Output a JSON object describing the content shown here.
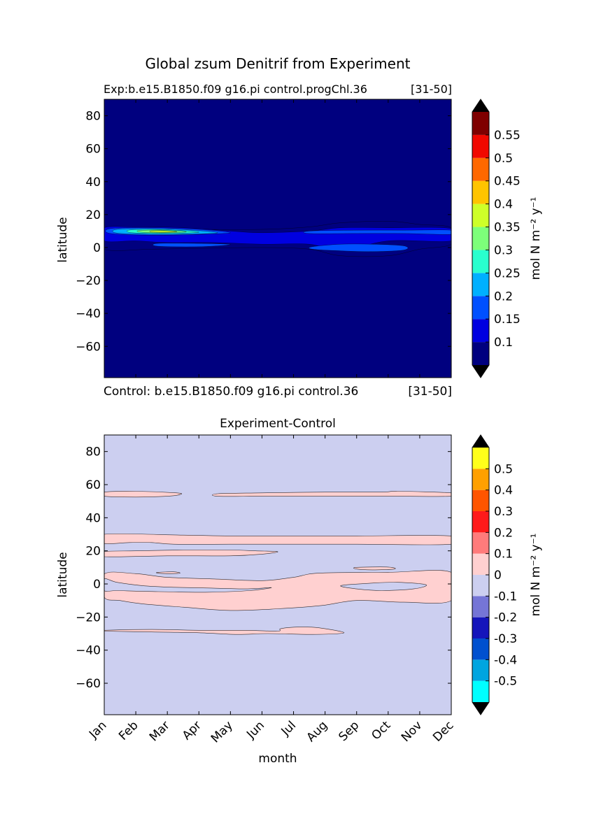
{
  "figure": {
    "suptitle": "Global zsum Denitrif from Experiment"
  },
  "chart_data": [
    {
      "type": "heatmap",
      "panel": "experiment",
      "title_left": "Exp:b.e15.B1850.f09 g16.pi control.progChl.36",
      "title_right": "[31-50]",
      "footer_left": "Control: b.e15.B1850.f09 g16.pi control.36",
      "footer_right": "[31-50]",
      "ylabel": "latitude",
      "xlabel": "",
      "xlim": [
        0,
        11
      ],
      "ylim": [
        -79,
        90
      ],
      "yticks": [
        80,
        60,
        40,
        20,
        0,
        -20,
        -40,
        -60
      ],
      "ytick_labels": [
        "80",
        "60",
        "40",
        "20",
        "0",
        "−20",
        "−40",
        "−60"
      ],
      "background": "#00007f",
      "colorbar": {
        "label": "mol N m⁻² y⁻¹",
        "levels": [
          0.05,
          0.1,
          0.15,
          0.2,
          0.25,
          0.3,
          0.35,
          0.4,
          0.45,
          0.5,
          0.55,
          0.6
        ],
        "tick_labels": [
          "0.1",
          "0.15",
          "0.2",
          "0.25",
          "0.3",
          "0.35",
          "0.4",
          "0.45",
          "0.5",
          "0.55"
        ],
        "tick_values": [
          0.1,
          0.15,
          0.2,
          0.25,
          0.3,
          0.35,
          0.4,
          0.45,
          0.5,
          0.55
        ],
        "colors": [
          "#00007f",
          "#0000e0",
          "#0050ff",
          "#00b0ff",
          "#29ffce",
          "#7dff7a",
          "#ceff29",
          "#ffc400",
          "#ff6800",
          "#f10800",
          "#7f0000"
        ],
        "under_color": "#000000",
        "over_color": "#000000"
      },
      "regions": [
        {
          "level": 0.05,
          "outline": [
            [
              0,
              11
            ],
            [
              1.5,
              11.5
            ],
            [
              3,
              11
            ],
            [
              5,
              11
            ],
            [
              6.5,
              12.5
            ],
            [
              7.5,
              15
            ],
            [
              9,
              16
            ],
            [
              10,
              14
            ],
            [
              11,
              12
            ],
            [
              11,
              2
            ],
            [
              10,
              -1
            ],
            [
              9,
              -5
            ],
            [
              7.5,
              -5
            ],
            [
              6.5,
              -1
            ],
            [
              5,
              0
            ],
            [
              3,
              -0.5
            ],
            [
              1.5,
              -1
            ],
            [
              0,
              -1
            ]
          ]
        },
        {
          "level": 0.1,
          "outline": [
            [
              0,
              12
            ],
            [
              1,
              12.5
            ],
            [
              2.5,
              12
            ],
            [
              4,
              10
            ],
            [
              5,
              9
            ],
            [
              6.5,
              10
            ],
            [
              7.5,
              12
            ],
            [
              9,
              12
            ],
            [
              11,
              11.5
            ],
            [
              11,
              4
            ],
            [
              9,
              4
            ],
            [
              7.5,
              -2
            ],
            [
              6.5,
              2
            ],
            [
              5,
              2
            ],
            [
              3.5,
              3
            ],
            [
              2,
              3
            ],
            [
              1,
              4
            ],
            [
              0,
              4
            ]
          ]
        },
        {
          "level": 0.15,
          "outline": [
            [
              0.2,
              11.5
            ],
            [
              1.5,
              12
            ],
            [
              3,
              11
            ],
            [
              4,
              9
            ],
            [
              3,
              8
            ],
            [
              1.5,
              7.5
            ],
            [
              0.2,
              8.5
            ]
          ]
        },
        {
          "level": 0.15,
          "outline": [
            [
              6.5,
              10
            ],
            [
              8,
              10.5
            ],
            [
              9.5,
              10.5
            ],
            [
              11,
              10.5
            ],
            [
              11,
              8
            ],
            [
              9.5,
              8.5
            ],
            [
              8,
              8.5
            ],
            [
              6.5,
              8.5
            ]
          ]
        },
        {
          "level": 0.15,
          "outline": [
            [
              6.6,
              0.5
            ],
            [
              7.5,
              2
            ],
            [
              8.5,
              2
            ],
            [
              9.5,
              1
            ],
            [
              9.5,
              -1.5
            ],
            [
              8.5,
              -2.5
            ],
            [
              7.5,
              -2
            ],
            [
              6.6,
              -1
            ]
          ]
        },
        {
          "level": 0.15,
          "outline": [
            [
              1.7,
              2.5
            ],
            [
              3,
              2.5
            ],
            [
              4,
              1.8
            ],
            [
              3,
              0.5
            ],
            [
              1.7,
              0.8
            ]
          ]
        },
        {
          "level": 0.2,
          "outline": [
            [
              0.4,
              11
            ],
            [
              1.5,
              11.5
            ],
            [
              2.8,
              10.5
            ],
            [
              3.6,
              9
            ],
            [
              2.8,
              8.2
            ],
            [
              1.5,
              8
            ],
            [
              0.4,
              8.8
            ]
          ]
        },
        {
          "level": 0.25,
          "outline": [
            [
              0.8,
              10.6
            ],
            [
              1.6,
              11
            ],
            [
              2.5,
              10.2
            ],
            [
              3,
              9.3
            ],
            [
              2.3,
              8.7
            ],
            [
              1.4,
              8.6
            ],
            [
              0.8,
              9.2
            ]
          ]
        },
        {
          "level": 0.3,
          "outline": [
            [
              1.1,
              10.3
            ],
            [
              1.7,
              10.6
            ],
            [
              2.3,
              10
            ],
            [
              2.6,
              9.5
            ],
            [
              2.1,
              9
            ],
            [
              1.5,
              9
            ],
            [
              1.1,
              9.5
            ]
          ]
        },
        {
          "level": 0.35,
          "outline": [
            [
              1.5,
              10.2
            ],
            [
              2.1,
              10.1
            ],
            [
              2.3,
              9.6
            ],
            [
              1.9,
              9.3
            ],
            [
              1.5,
              9.5
            ]
          ]
        }
      ]
    },
    {
      "type": "heatmap",
      "panel": "difference",
      "title": "Experiment-Control",
      "ylabel": "latitude",
      "xlabel": "month",
      "xlim": [
        0,
        11
      ],
      "ylim": [
        -79,
        90
      ],
      "x_categories": [
        "Jan",
        "Feb",
        "Mar",
        "Apr",
        "May",
        "Jun",
        "Jul",
        "Aug",
        "Sep",
        "Oct",
        "Nov",
        "Dec"
      ],
      "yticks": [
        80,
        60,
        40,
        20,
        0,
        -20,
        -40,
        -60
      ],
      "ytick_labels": [
        "80",
        "60",
        "40",
        "20",
        "0",
        "−20",
        "−40",
        "−60"
      ],
      "background": "#cccff0",
      "colorbar": {
        "label": "mol N m⁻² y⁻¹",
        "levels": [
          -0.6,
          -0.5,
          -0.4,
          -0.3,
          -0.2,
          -0.1,
          0,
          0.1,
          0.2,
          0.3,
          0.4,
          0.5,
          0.6
        ],
        "tick_labels": [
          "-0.5",
          "-0.4",
          "-0.3",
          "-0.2",
          "-0.1",
          "0",
          "0.1",
          "0.2",
          "0.3",
          "0.4",
          "0.5"
        ],
        "tick_values": [
          -0.5,
          -0.4,
          -0.3,
          -0.2,
          -0.1,
          0,
          0.1,
          0.2,
          0.3,
          0.4,
          0.5
        ],
        "colors": [
          "#00ffff",
          "#00a5e0",
          "#0050cf",
          "#1515bb",
          "#7575d6",
          "#cccff0",
          "#ffd0d0",
          "#ff7b7b",
          "#ff1a1a",
          "#ff5500",
          "#ffa000",
          "#ffff1a"
        ],
        "under_color": "#000000",
        "over_color": "#000000"
      },
      "regions": [
        {
          "level": 0.0,
          "outline": [
            [
              0,
              55.5
            ],
            [
              1,
              56
            ],
            [
              2.3,
              55
            ],
            [
              2.4,
              54
            ],
            [
              2,
              53
            ],
            [
              1,
              52.5
            ],
            [
              0,
              53
            ]
          ]
        },
        {
          "level": 0.0,
          "outline": [
            [
              3.6,
              54.5
            ],
            [
              5,
              55
            ],
            [
              7,
              55.5
            ],
            [
              8.8,
              55.5
            ],
            [
              9.3,
              56
            ],
            [
              11,
              55
            ],
            [
              11,
              53
            ],
            [
              9.3,
              53
            ],
            [
              7,
              53
            ],
            [
              5,
              53
            ],
            [
              3.6,
              53
            ]
          ]
        },
        {
          "level": 0.0,
          "outline": [
            [
              0,
              30
            ],
            [
              2.5,
              29.5
            ],
            [
              4,
              29
            ],
            [
              6,
              29
            ],
            [
              8,
              29
            ],
            [
              11,
              29
            ],
            [
              11,
              24
            ],
            [
              8,
              24
            ],
            [
              6,
              24
            ],
            [
              4,
              24
            ],
            [
              2.2,
              24
            ],
            [
              1.5,
              25
            ],
            [
              0.8,
              25
            ],
            [
              0,
              24.5
            ]
          ]
        },
        {
          "level": 0.0,
          "outline": [
            [
              0,
              19.5
            ],
            [
              1,
              20
            ],
            [
              2.5,
              20.5
            ],
            [
              4,
              20.5
            ],
            [
              4.8,
              20
            ],
            [
              5.5,
              19.5
            ],
            [
              5,
              18
            ],
            [
              4,
              17
            ],
            [
              2,
              17
            ],
            [
              0,
              16.5
            ]
          ]
        },
        {
          "level": 0.0,
          "outline": [
            [
              0,
              6
            ],
            [
              1,
              6.2
            ],
            [
              2,
              4
            ],
            [
              3.5,
              3
            ],
            [
              5,
              2
            ],
            [
              6,
              4
            ],
            [
              6.8,
              6.5
            ],
            [
              9,
              7
            ],
            [
              11,
              7
            ],
            [
              11,
              -10
            ],
            [
              9.5,
              -11
            ],
            [
              8,
              -10
            ],
            [
              6.9,
              -13
            ],
            [
              5.5,
              -15
            ],
            [
              4,
              -16
            ],
            [
              2.5,
              -14
            ],
            [
              1.2,
              -12
            ],
            [
              0.5,
              -10
            ],
            [
              0,
              -8
            ]
          ]
        },
        {
          "level": -0.1,
          "outline": [
            [
              7.5,
              -1
            ],
            [
              8.5,
              0.5
            ],
            [
              9.3,
              1
            ],
            [
              10.2,
              -0.5
            ],
            [
              9.8,
              -3
            ],
            [
              8.8,
              -4
            ],
            [
              8,
              -3
            ]
          ]
        },
        {
          "level": -0.1,
          "outline": [
            [
              0,
              3
            ],
            [
              0.4,
              1
            ],
            [
              1.2,
              -1
            ],
            [
              2.2,
              -2
            ],
            [
              3.4,
              -2.5
            ],
            [
              4.5,
              -3
            ],
            [
              5.3,
              -2.2
            ],
            [
              4.6,
              -4
            ],
            [
              3.2,
              -5
            ],
            [
              1.4,
              -4.5
            ],
            [
              0.4,
              -4
            ],
            [
              0,
              -4
            ]
          ]
        },
        {
          "level": 0.0,
          "outline": [
            [
              0,
              -28
            ],
            [
              1.5,
              -27.5
            ],
            [
              3,
              -28
            ],
            [
              4.5,
              -28
            ],
            [
              5.5,
              -28.5
            ],
            [
              5.6,
              -27
            ],
            [
              6.2,
              -26
            ],
            [
              6.8,
              -26.5
            ],
            [
              7.6,
              -29.5
            ],
            [
              6.6,
              -30.5
            ],
            [
              5.2,
              -30
            ],
            [
              4.2,
              -30.5
            ],
            [
              3,
              -29.5
            ],
            [
              1.5,
              -29
            ],
            [
              0,
              -28.5
            ]
          ]
        },
        {
          "level": 0.0,
          "outline": [
            [
              1.7,
              7
            ],
            [
              2.2,
              7.3
            ],
            [
              2.4,
              6.5
            ],
            [
              2,
              6.2
            ],
            [
              1.7,
              6.5
            ]
          ]
        },
        {
          "level": 0.0,
          "outline": [
            [
              8,
              10
            ],
            [
              9,
              10.2
            ],
            [
              9.2,
              9
            ],
            [
              8.5,
              8.5
            ],
            [
              8,
              9
            ]
          ]
        }
      ]
    }
  ]
}
